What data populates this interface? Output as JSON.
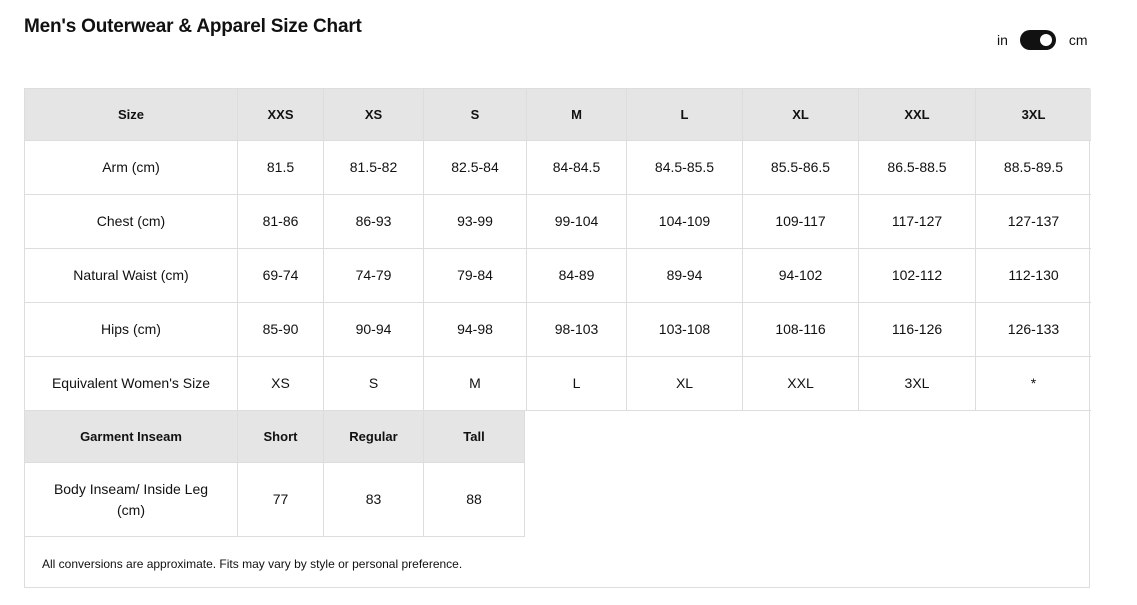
{
  "title": "Men's Outerwear & Apparel Size Chart",
  "units": {
    "left": "in",
    "right": "cm",
    "selected": "cm"
  },
  "size_table": {
    "headers": [
      "Size",
      "XXS",
      "XS",
      "S",
      "M",
      "L",
      "XL",
      "XXL",
      "3XL"
    ],
    "rows": [
      [
        "Arm (cm)",
        "81.5",
        "81.5-82",
        "82.5-84",
        "84-84.5",
        "84.5-85.5",
        "85.5-86.5",
        "86.5-88.5",
        "88.5-89.5"
      ],
      [
        "Chest (cm)",
        "81-86",
        "86-93",
        "93-99",
        "99-104",
        "104-109",
        "109-117",
        "117-127",
        "127-137"
      ],
      [
        "Natural Waist (cm)",
        "69-74",
        "74-79",
        "79-84",
        "84-89",
        "89-94",
        "94-102",
        "102-112",
        "112-130"
      ],
      [
        "Hips (cm)",
        "85-90",
        "90-94",
        "94-98",
        "98-103",
        "103-108",
        "108-116",
        "116-126",
        "126-133"
      ],
      [
        "Equivalent Women's Size",
        "XS",
        "S",
        "M",
        "L",
        "XL",
        "XXL",
        "3XL",
        "*"
      ]
    ]
  },
  "inseam_table": {
    "headers": [
      "Garment Inseam",
      "Short",
      "Regular",
      "Tall"
    ],
    "rows": [
      [
        "Body Inseam/ Inside Leg (cm)",
        "77",
        "83",
        "88"
      ]
    ]
  },
  "note": "All conversions are approximate. Fits may vary by style or personal preference."
}
